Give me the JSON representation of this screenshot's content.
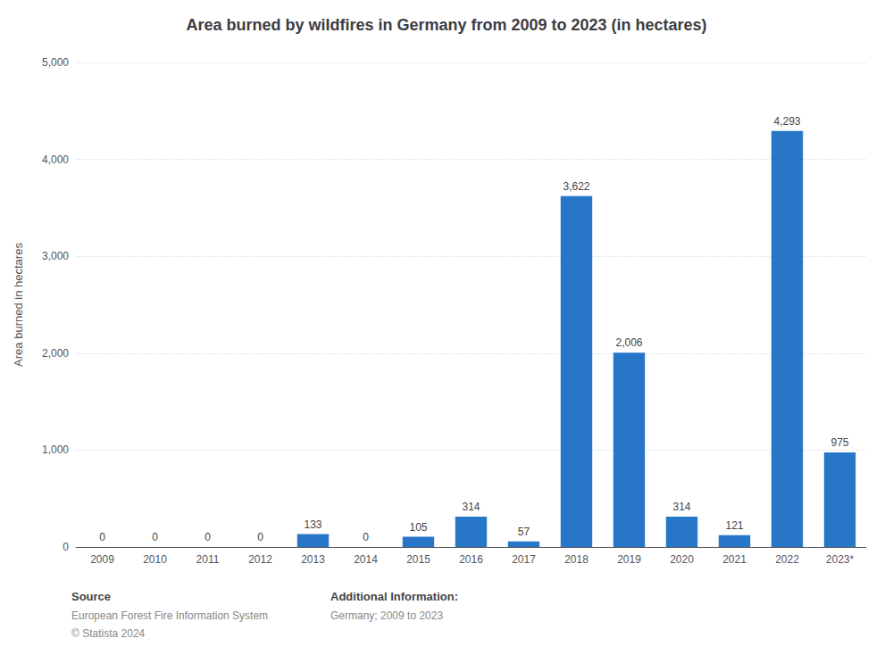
{
  "chart_data": {
    "type": "bar",
    "title": "Area burned by wildfires in Germany from 2009 to 2023 (in hectares)",
    "ylabel": "Area burned in hectares",
    "categories": [
      "2009",
      "2010",
      "2011",
      "2012",
      "2013",
      "2014",
      "2015",
      "2016",
      "2017",
      "2018",
      "2019",
      "2020",
      "2021",
      "2022",
      "2023*"
    ],
    "values": [
      0,
      0,
      0,
      0,
      133,
      0,
      105,
      314,
      57,
      3622,
      2006,
      314,
      121,
      4293,
      975
    ],
    "value_labels": [
      "0",
      "0",
      "0",
      "0",
      "133",
      "0",
      "105",
      "314",
      "57",
      "3,622",
      "2,006",
      "314",
      "121",
      "4,293",
      "975"
    ],
    "data_labels": true,
    "color": "#2876C8",
    "ylim": [
      0,
      5000
    ],
    "yticks": [
      0,
      {
        "value": 1000,
        "label": "1,000"
      },
      {
        "value": 2000,
        "label": "2,000"
      },
      {
        "value": 3000,
        "label": "3,000"
      },
      {
        "value": 4000,
        "label": "4,000"
      },
      {
        "value": 5000,
        "label": "5,000"
      }
    ],
    "grid": true,
    "annotations": [
      [
        "Source",
        "European Forest Fire Information System",
        "© Statista 2024"
      ],
      [
        "Additional Information:",
        "Germany; 2009 to 2023"
      ]
    ]
  }
}
